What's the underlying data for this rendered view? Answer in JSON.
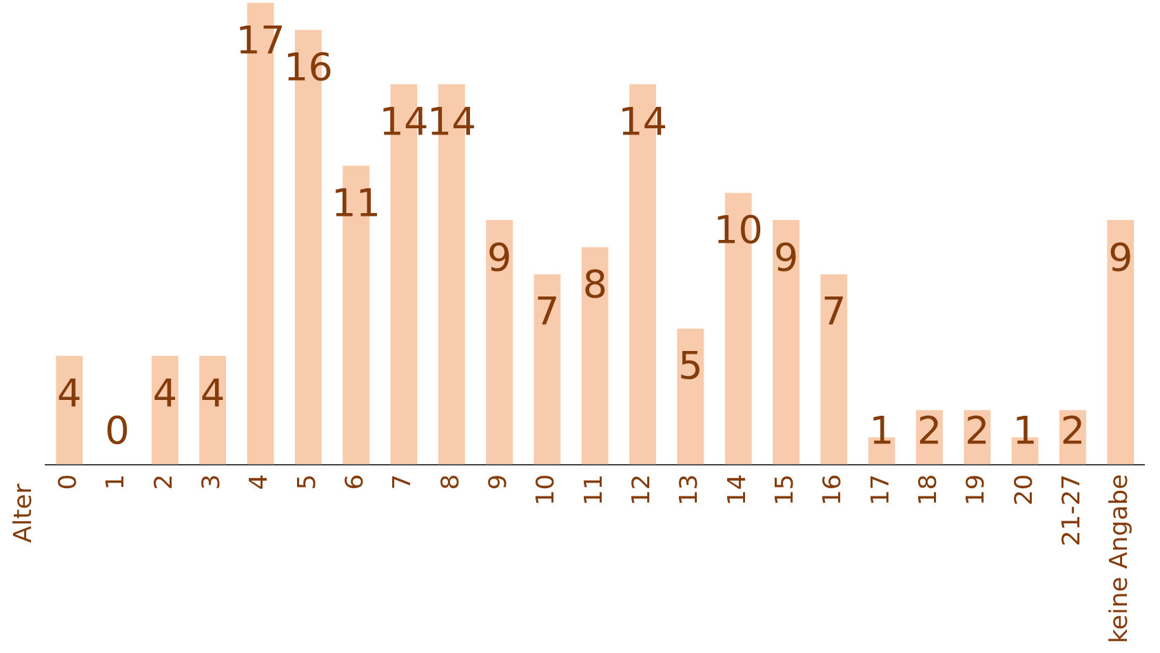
{
  "chart_data": {
    "type": "bar",
    "annotations": [
      "Alter"
    ],
    "categories": [
      "0",
      "1",
      "2",
      "3",
      "4",
      "5",
      "6",
      "7",
      "8",
      "9",
      "10",
      "11",
      "12",
      "13",
      "14",
      "15",
      "16",
      "17",
      "18",
      "19",
      "20",
      "21-27",
      "keine Angabe"
    ],
    "values": [
      4,
      0,
      4,
      4,
      17,
      16,
      11,
      14,
      14,
      9,
      7,
      8,
      14,
      5,
      10,
      9,
      7,
      1,
      2,
      2,
      1,
      2,
      9
    ],
    "color": "#f8cbad",
    "data_labels": true,
    "grid": false,
    "legend": false
  }
}
